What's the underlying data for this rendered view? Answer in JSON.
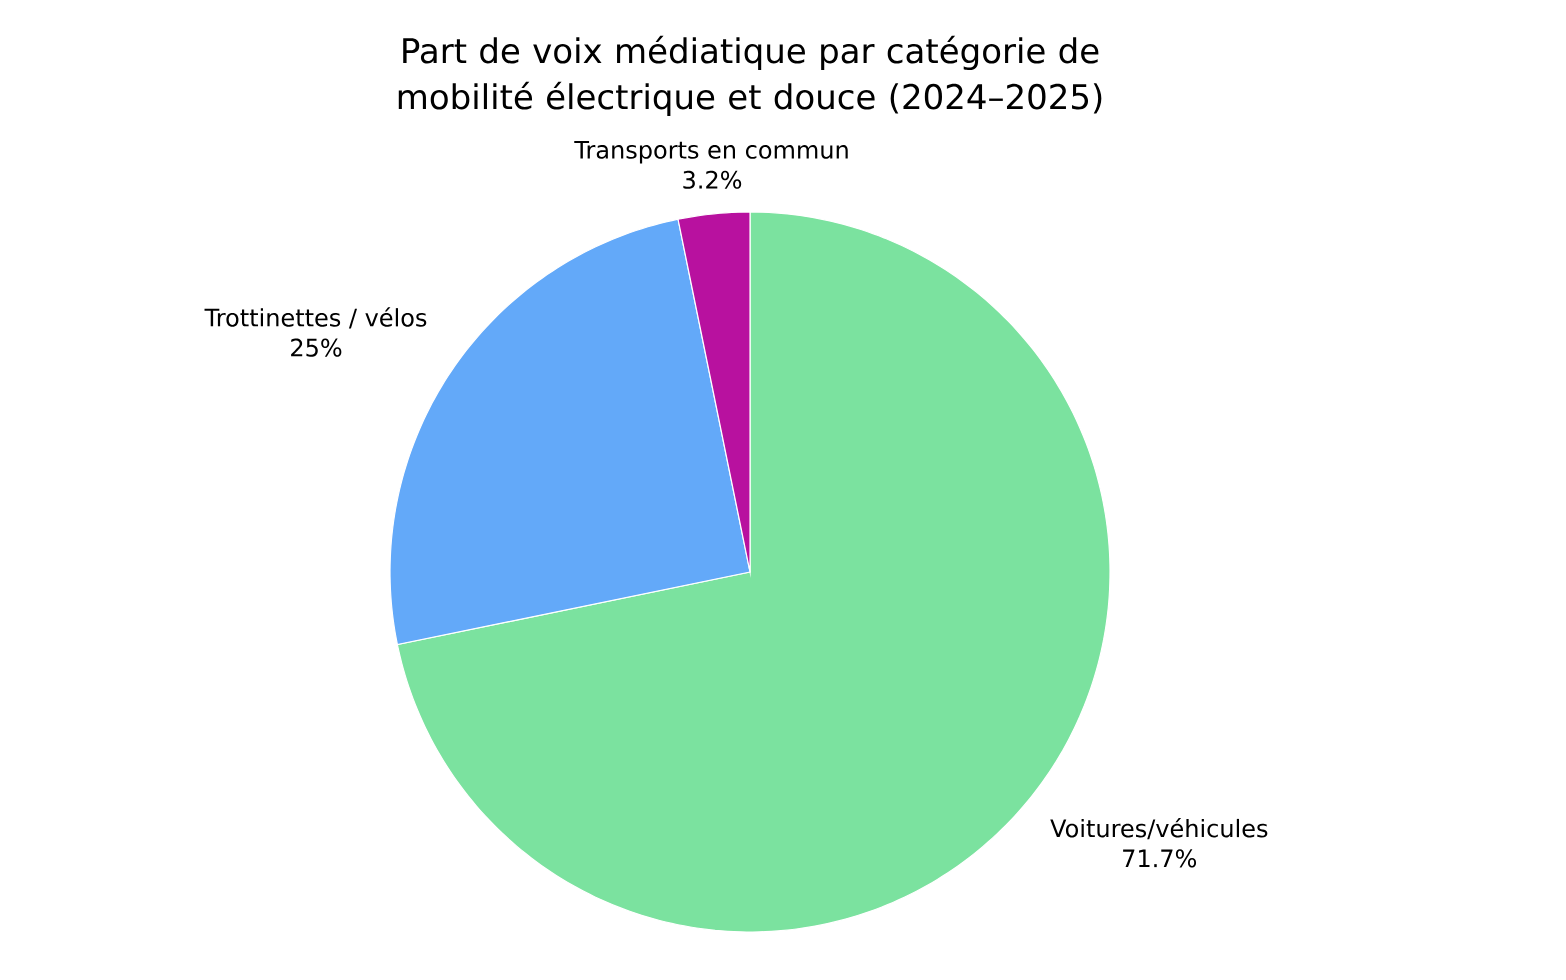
{
  "chart_data": {
    "type": "pie",
    "title": "Part de voix médiatique par catégorie de mobilité électrique et douce (2024–2025)",
    "categories": [
      "Voitures/véhicules",
      "Trottinettes / vélos",
      "Transports en commun"
    ],
    "values": [
      71.7,
      25,
      3.2
    ],
    "value_labels": [
      "71.7%",
      "25%",
      "3.2%"
    ],
    "colors": [
      "#7be29f",
      "#63a9f9",
      "#b8119f"
    ]
  }
}
